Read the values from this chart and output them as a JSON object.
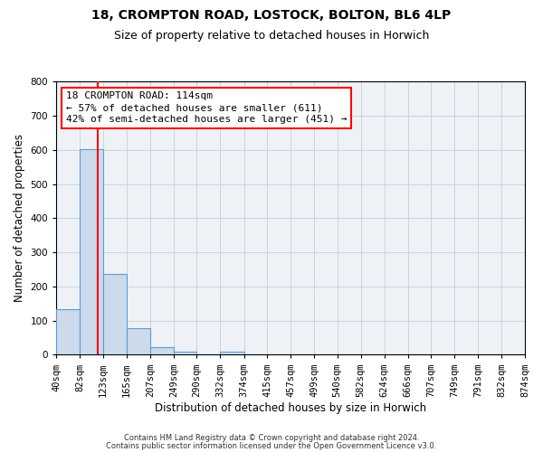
{
  "title": "18, CROMPTON ROAD, LOSTOCK, BOLTON, BL6 4LP",
  "subtitle": "Size of property relative to detached houses in Horwich",
  "xlabel": "Distribution of detached houses by size in Horwich",
  "ylabel": "Number of detached properties",
  "bin_labels": [
    "40sqm",
    "82sqm",
    "123sqm",
    "165sqm",
    "207sqm",
    "249sqm",
    "290sqm",
    "332sqm",
    "374sqm",
    "415sqm",
    "457sqm",
    "499sqm",
    "540sqm",
    "582sqm",
    "624sqm",
    "666sqm",
    "707sqm",
    "749sqm",
    "791sqm",
    "832sqm",
    "874sqm"
  ],
  "bin_edges": [
    40,
    82,
    123,
    165,
    207,
    249,
    290,
    332,
    374,
    415,
    457,
    499,
    540,
    582,
    624,
    666,
    707,
    749,
    791,
    832,
    874
  ],
  "bar_heights": [
    133,
    603,
    237,
    78,
    22,
    10,
    0,
    10,
    0,
    0,
    0,
    0,
    0,
    0,
    0,
    0,
    0,
    0,
    0,
    0
  ],
  "bar_color": "#ccdaeb",
  "bar_edge_color": "#5b9bd5",
  "red_line_x": 114,
  "ylim": [
    0,
    800
  ],
  "yticks": [
    0,
    100,
    200,
    300,
    400,
    500,
    600,
    700,
    800
  ],
  "annotation_title": "18 CROMPTON ROAD: 114sqm",
  "annotation_line1": "← 57% of detached houses are smaller (611)",
  "annotation_line2": "42% of semi-detached houses are larger (451) →",
  "footer_line1": "Contains HM Land Registry data © Crown copyright and database right 2024.",
  "footer_line2": "Contains public sector information licensed under the Open Government Licence v3.0.",
  "bg_color": "#eef2f7",
  "grid_color": "#c8d4e0",
  "title_fontsize": 10,
  "subtitle_fontsize": 9,
  "axis_label_fontsize": 8.5,
  "tick_fontsize": 7.5,
  "annotation_fontsize": 8,
  "footer_fontsize": 6
}
